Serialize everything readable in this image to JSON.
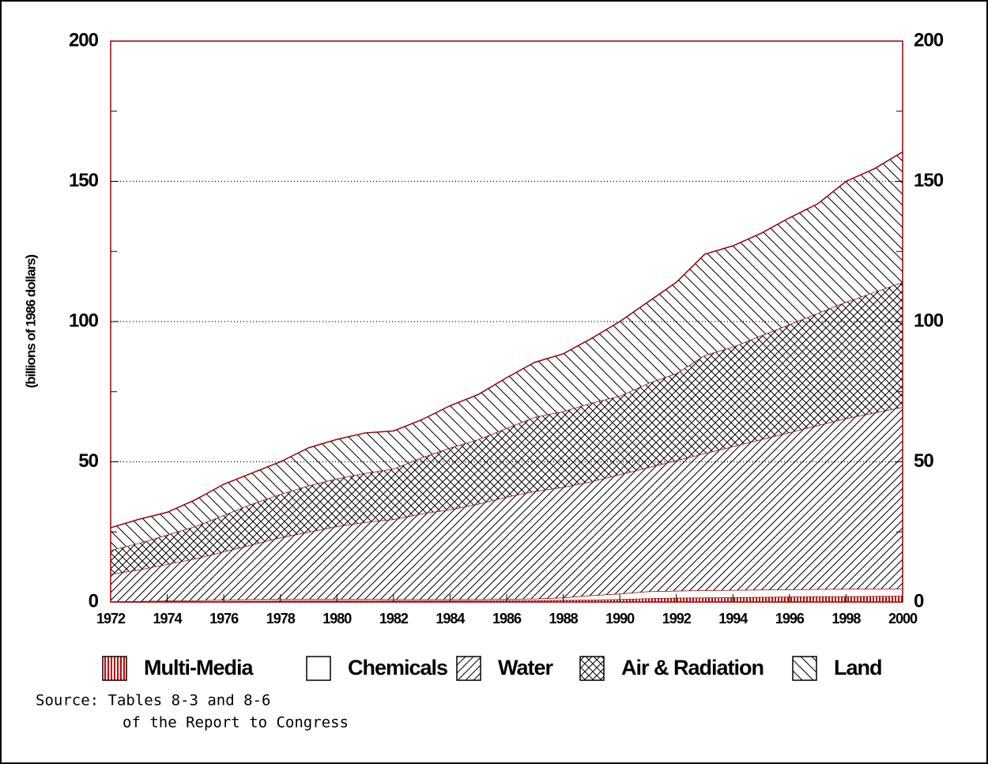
{
  "chart_data": {
    "type": "stacked_area",
    "y_label": "(billions of 1986 dollars)",
    "source": [
      "Source: Tables 8-3 and 8-6",
      "of the Report to Congress"
    ],
    "x": [
      1972,
      1973,
      1974,
      1975,
      1976,
      1977,
      1978,
      1979,
      1980,
      1981,
      1982,
      1983,
      1984,
      1985,
      1986,
      1987,
      1988,
      1989,
      1990,
      1991,
      1992,
      1993,
      1994,
      1995,
      1996,
      1997,
      1998,
      1999,
      2000
    ],
    "xlim": [
      1972,
      2000
    ],
    "xticks": [
      1972,
      1974,
      1976,
      1978,
      1980,
      1982,
      1984,
      1986,
      1988,
      1990,
      1992,
      1994,
      1996,
      1998,
      2000
    ],
    "ylim": [
      0,
      200
    ],
    "yticks": [
      0,
      50,
      100,
      150,
      200
    ],
    "yminorticks": [
      25,
      75,
      125,
      175
    ],
    "y2lim": [
      0,
      200
    ],
    "y2ticks": [
      0,
      50,
      100,
      150,
      200
    ],
    "grid": true,
    "series": [
      {
        "name": "Multi-Media",
        "color": "#cc0000",
        "pattern": "vertical",
        "values": [
          0.1,
          0.1,
          0.2,
          0.2,
          0.3,
          0.4,
          0.5,
          0.5,
          0.5,
          0.5,
          0.5,
          0.5,
          0.5,
          0.5,
          0.6,
          0.6,
          0.7,
          0.8,
          1.0,
          1.3,
          1.5,
          1.6,
          1.7,
          1.8,
          1.9,
          2.0,
          2.0,
          2.1,
          2.2
        ]
      },
      {
        "name": "Chemicals",
        "color": "#000000",
        "pattern": "none",
        "values": [
          0.1,
          0.2,
          0.3,
          0.4,
          0.5,
          0.6,
          0.6,
          0.6,
          0.6,
          0.6,
          0.5,
          0.5,
          0.5,
          0.5,
          0.5,
          0.6,
          0.9,
          1.6,
          2.0,
          2.5,
          2.5,
          2.6,
          2.6,
          2.6,
          2.6,
          2.6,
          2.7,
          2.7,
          2.6
        ]
      },
      {
        "name": "Water",
        "color": "#000000",
        "pattern": "forward",
        "values": [
          9.8,
          11.2,
          13.0,
          14.9,
          17.2,
          19.5,
          21.9,
          23.9,
          25.9,
          27.4,
          28.5,
          30.5,
          32.0,
          34.0,
          36.4,
          38.3,
          39.4,
          40.6,
          42.5,
          44.2,
          46.5,
          48.8,
          51.2,
          53.6,
          56.0,
          58.4,
          60.8,
          62.7,
          64.7
        ]
      },
      {
        "name": "Air & Radiation",
        "color": "#000000",
        "pattern": "cross",
        "values": [
          8.5,
          9.5,
          10.5,
          11.5,
          13,
          14.5,
          15.5,
          16.5,
          17,
          17.5,
          18,
          20,
          22,
          23,
          24.5,
          26.5,
          27,
          28,
          28,
          30,
          31,
          35,
          35.5,
          37,
          38.5,
          40,
          41.5,
          43,
          44.5
        ]
      },
      {
        "name": "Land",
        "color": "#000000",
        "pattern": "backward",
        "values": [
          8,
          8.5,
          8,
          9.5,
          11,
          11,
          11.5,
          13.5,
          14,
          14.3,
          13.5,
          13.5,
          15,
          16,
          18,
          19.5,
          20.5,
          23,
          26.5,
          29,
          32.5,
          36,
          36,
          36.5,
          38,
          39,
          43,
          44,
          46.5
        ]
      }
    ]
  }
}
